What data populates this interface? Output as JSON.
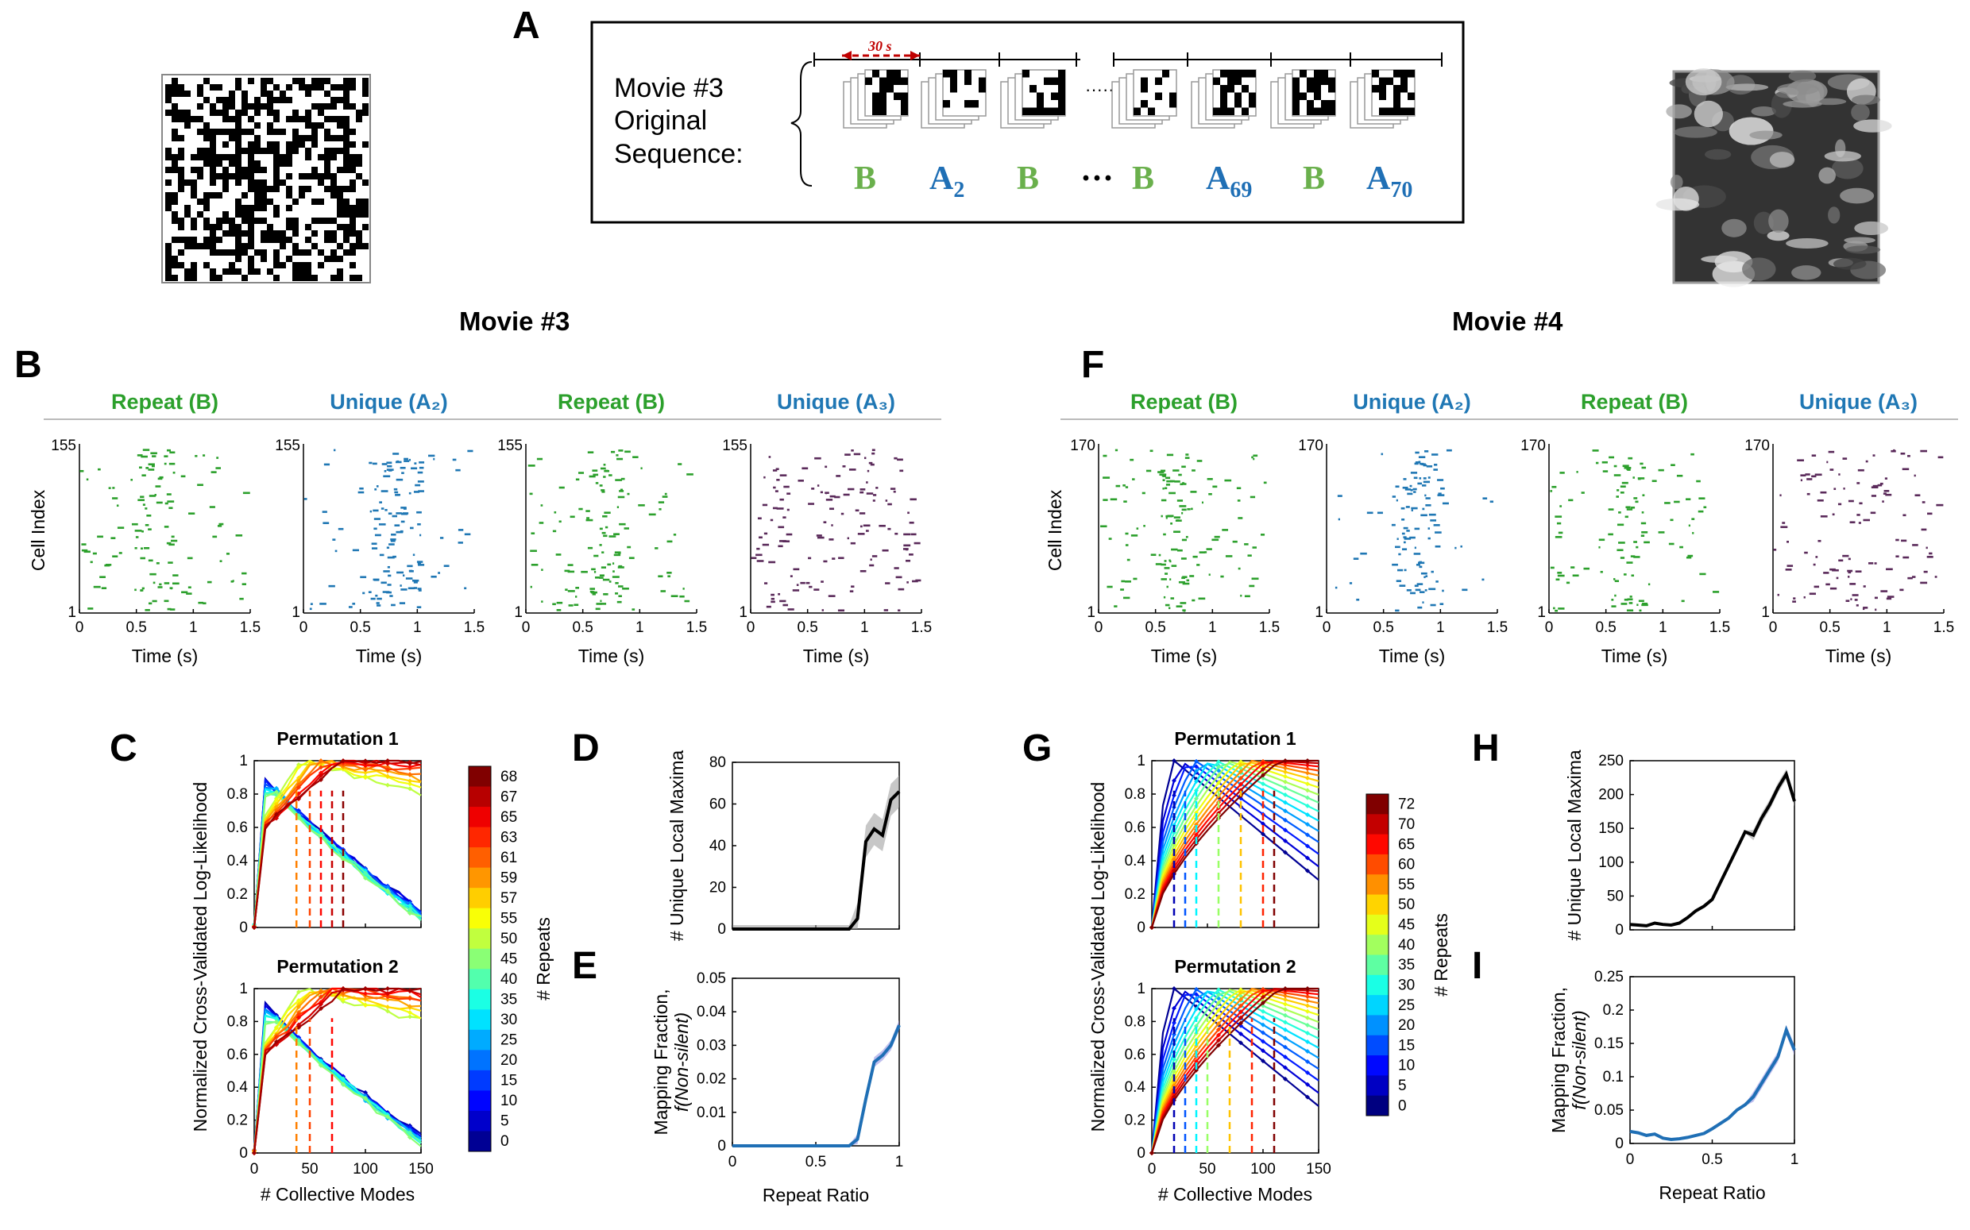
{
  "panel_letters": {
    "A": "A",
    "B": "B",
    "C": "C",
    "D": "D",
    "E": "E",
    "F": "F",
    "G": "G",
    "H": "H",
    "I": "I"
  },
  "panel_a": {
    "text_lines": [
      "Movie #3",
      "Original",
      "Sequence:"
    ],
    "duration_label": "30 s",
    "sequence": [
      {
        "label": "B",
        "sub": ""
      },
      {
        "label": "A",
        "sub": "2"
      },
      {
        "label": "B",
        "sub": ""
      },
      {
        "label": "···",
        "sub": ""
      },
      {
        "label": "B",
        "sub": ""
      },
      {
        "label": "A",
        "sub": "69"
      },
      {
        "label": "B",
        "sub": ""
      },
      {
        "label": "A",
        "sub": "70"
      }
    ],
    "colors": {
      "repeat": "#6ab04c",
      "unique": "#1f6fb5",
      "duration": "#c00000"
    }
  },
  "movie_titles": {
    "left": "Movie #3",
    "right": "Movie #4"
  },
  "raster": {
    "left": {
      "cell_max": "155",
      "cell_min": "1",
      "titles": [
        {
          "text": "Repeat (B)",
          "kind": "repeat"
        },
        {
          "text": "Unique (A₂)",
          "kind": "unique"
        },
        {
          "text": "Repeat (B)",
          "kind": "repeat"
        },
        {
          "text": "Unique (A₃)",
          "kind": "unique"
        }
      ]
    },
    "right": {
      "cell_max": "170",
      "cell_min": "1",
      "titles": [
        {
          "text": "Repeat (B)",
          "kind": "repeat"
        },
        {
          "text": "Unique (A₂)",
          "kind": "unique"
        },
        {
          "text": "Repeat (B)",
          "kind": "repeat"
        },
        {
          "text": "Unique (A₃)",
          "kind": "unique"
        }
      ]
    },
    "time_ticks": [
      "0",
      "0.5",
      "1",
      "1.5"
    ],
    "xlabel": "Time (s)",
    "ylabel": "Cell Index",
    "dot_colors": [
      "#2ca02c",
      "#1f77b4",
      "#2ca02c",
      "#5a2a5a"
    ]
  },
  "chart_data": [
    {
      "id": "C",
      "type": "line",
      "subtitles": [
        "Permutation 1",
        "Permutation 2"
      ],
      "ylabel": "Normalized Cross-Validated Log-Likelihood",
      "xlabel": "# Collective Modes",
      "x_ticks": [
        "0",
        "50",
        "100",
        "150"
      ],
      "y_ticks": [
        "0",
        "0.2",
        "0.4",
        "0.6",
        "0.8",
        "1"
      ],
      "xlim": [
        0,
        150
      ],
      "ylim": [
        0,
        1
      ],
      "colorbar": {
        "label": "# Repeats",
        "ticks": [
          "68",
          "67",
          "65",
          "63",
          "61",
          "59",
          "57",
          "55",
          "50",
          "45",
          "40",
          "35",
          "30",
          "25",
          "20",
          "15",
          "10",
          "5",
          "0"
        ]
      },
      "peaks_perm1": [
        38,
        50,
        60,
        70,
        80
      ],
      "peaks_perm2": [
        38,
        50,
        70
      ]
    },
    {
      "id": "D",
      "type": "line",
      "ylabel": "# Unique Local Maxima",
      "x": [
        0,
        0.1,
        0.2,
        0.3,
        0.4,
        0.5,
        0.6,
        0.7,
        0.75,
        0.8,
        0.85,
        0.9,
        0.95,
        1.0
      ],
      "y": [
        0,
        0,
        0,
        0,
        0,
        0,
        0,
        0,
        5,
        42,
        48,
        45,
        62,
        66
      ],
      "y_ticks": [
        "0",
        "20",
        "40",
        "60",
        "80"
      ],
      "ylim": [
        0,
        80
      ],
      "xlim": [
        0,
        1
      ]
    },
    {
      "id": "E",
      "type": "line",
      "ylabel_lines": [
        "Mapping Fraction,",
        "f(Non-silent)"
      ],
      "xlabel": "Repeat Ratio",
      "x": [
        0,
        0.1,
        0.2,
        0.3,
        0.4,
        0.5,
        0.6,
        0.7,
        0.75,
        0.8,
        0.85,
        0.9,
        0.95,
        1.0
      ],
      "y": [
        0,
        0,
        0,
        0,
        0,
        0,
        0,
        0,
        0.002,
        0.014,
        0.025,
        0.027,
        0.03,
        0.036
      ],
      "y_ticks": [
        "0",
        "0.01",
        "0.02",
        "0.03",
        "0.04",
        "0.05"
      ],
      "x_ticks": [
        "0",
        "0.5",
        "1"
      ],
      "ylim": [
        0,
        0.05
      ],
      "xlim": [
        0,
        1
      ]
    },
    {
      "id": "G",
      "type": "line",
      "subtitles": [
        "Permutation 1",
        "Permutation 2"
      ],
      "ylabel": "Normalized Cross-Validated Log-Likelihood",
      "xlabel": "# Collective Modes",
      "x_ticks": [
        "0",
        "50",
        "100",
        "150"
      ],
      "y_ticks": [
        "0",
        "0.2",
        "0.4",
        "0.6",
        "0.8",
        "1"
      ],
      "xlim": [
        0,
        150
      ],
      "ylim": [
        0,
        1
      ],
      "colorbar": {
        "label": "# Repeats",
        "ticks": [
          "72",
          "70",
          "65",
          "60",
          "55",
          "50",
          "45",
          "40",
          "35",
          "30",
          "25",
          "20",
          "15",
          "10",
          "5",
          "0"
        ]
      },
      "peaks_perm1": [
        20,
        30,
        40,
        60,
        80,
        100,
        110
      ],
      "peaks_perm2": [
        20,
        30,
        40,
        50,
        70,
        90,
        110
      ]
    },
    {
      "id": "H",
      "type": "line",
      "ylabel": "# Unique Local Maxima",
      "x": [
        0,
        0.05,
        0.1,
        0.15,
        0.2,
        0.25,
        0.3,
        0.35,
        0.4,
        0.45,
        0.5,
        0.55,
        0.6,
        0.65,
        0.7,
        0.75,
        0.8,
        0.85,
        0.9,
        0.95,
        1.0
      ],
      "y": [
        8,
        7,
        6,
        10,
        8,
        7,
        10,
        18,
        28,
        35,
        45,
        70,
        95,
        120,
        145,
        140,
        165,
        185,
        210,
        230,
        190
      ],
      "y_ticks": [
        "0",
        "50",
        "100",
        "150",
        "200",
        "250"
      ],
      "ylim": [
        0,
        250
      ],
      "xlim": [
        0,
        1
      ]
    },
    {
      "id": "I",
      "type": "line",
      "ylabel_lines": [
        "Mapping Fraction,",
        "f(Non-silent)"
      ],
      "xlabel": "Repeat Ratio",
      "x": [
        0,
        0.05,
        0.1,
        0.15,
        0.2,
        0.25,
        0.3,
        0.35,
        0.4,
        0.45,
        0.5,
        0.55,
        0.6,
        0.65,
        0.7,
        0.75,
        0.8,
        0.85,
        0.9,
        0.95,
        1.0
      ],
      "y": [
        0.018,
        0.016,
        0.012,
        0.014,
        0.008,
        0.006,
        0.007,
        0.009,
        0.012,
        0.015,
        0.022,
        0.03,
        0.038,
        0.05,
        0.058,
        0.07,
        0.09,
        0.11,
        0.13,
        0.17,
        0.14
      ],
      "y_ticks": [
        "0",
        "0.05",
        "0.1",
        "0.15",
        "0.2",
        "0.25"
      ],
      "x_ticks": [
        "0",
        "0.5",
        "1"
      ],
      "ylim": [
        0,
        0.25
      ],
      "xlim": [
        0,
        1
      ]
    }
  ]
}
